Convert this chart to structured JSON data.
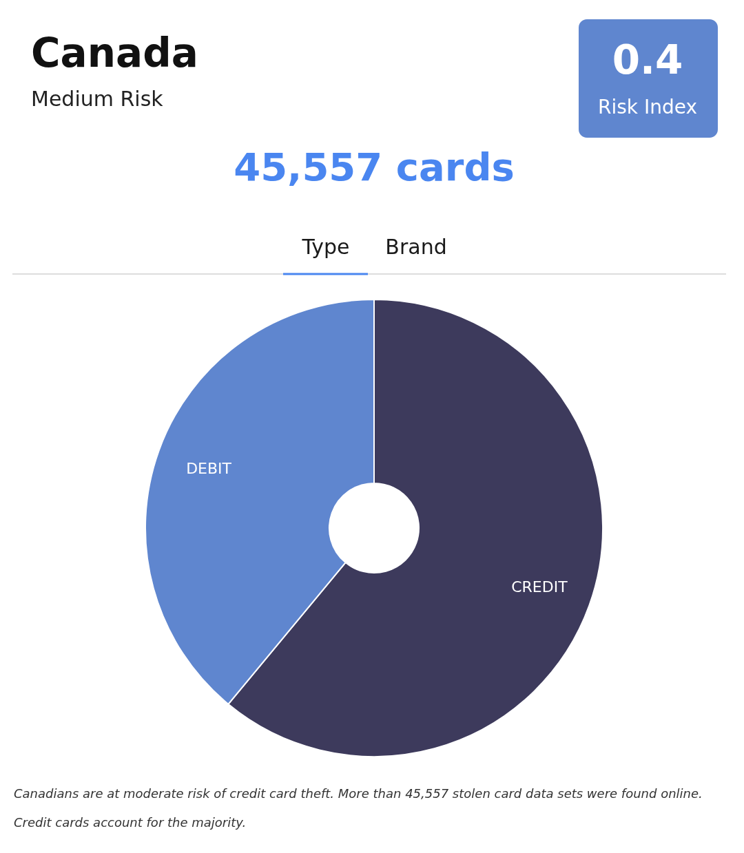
{
  "chart_data": {
    "type": "donut",
    "title": "Canada",
    "subtitle": "Medium Risk",
    "categories": [
      "CREDIT",
      "DEBIT"
    ],
    "values": [
      61,
      39
    ],
    "colors": [
      "#3d3a5c",
      "#5f86cf"
    ],
    "annotations": [
      "0.4",
      "Risk Index",
      "45,557 cards",
      "Type",
      "Brand",
      "Canadians are at moderate risk of credit card theft. More than 45,557 stolen card data sets were found online.",
      "Credit cards account for the majority."
    ]
  }
}
